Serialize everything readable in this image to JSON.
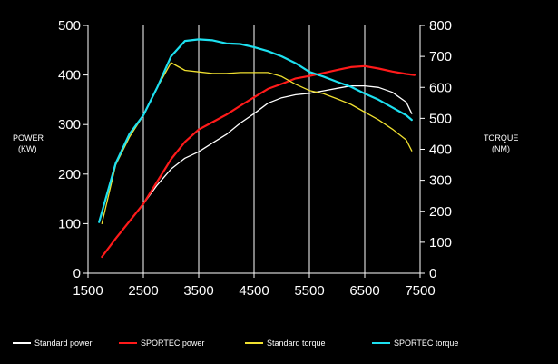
{
  "chart_data": {
    "type": "line",
    "left_axis": {
      "label_line1": "POWER",
      "label_line2": "(KW)",
      "range": [
        0,
        500
      ],
      "ticks": [
        "0",
        "100",
        "200",
        "300",
        "400",
        "500"
      ]
    },
    "right_axis": {
      "label_line1": "TORQUE",
      "label_line2": "(NM)",
      "range": [
        0,
        800
      ],
      "ticks": [
        "0",
        "100",
        "200",
        "300",
        "400",
        "500",
        "600",
        "700",
        "800"
      ]
    },
    "x_axis": {
      "range": [
        1500,
        7500
      ],
      "ticks": [
        "1500",
        "2500",
        "3500",
        "4500",
        "5500",
        "6500",
        "7500"
      ]
    },
    "grid": "vertical",
    "legend_position": "bottom",
    "series": [
      {
        "name": "Standard power",
        "axis": "left",
        "color": "#ffffff",
        "x": [
          1750,
          2000,
          2250,
          2500,
          2750,
          3000,
          3250,
          3500,
          3750,
          4000,
          4250,
          4500,
          4750,
          5000,
          5250,
          5500,
          5750,
          6000,
          6250,
          6500,
          6750,
          7000,
          7250,
          7350
        ],
        "y": [
          33,
          70,
          105,
          140,
          178,
          210,
          232,
          245,
          263,
          280,
          303,
          322,
          343,
          354,
          360,
          363,
          368,
          373,
          378,
          378,
          375,
          365,
          345,
          322
        ]
      },
      {
        "name": "SPORTEC power",
        "axis": "left",
        "color": "#ff1a1a",
        "x": [
          1750,
          2000,
          2250,
          2500,
          2750,
          3000,
          3250,
          3500,
          3750,
          4000,
          4250,
          4500,
          4750,
          5000,
          5250,
          5500,
          5750,
          6000,
          6250,
          6500,
          6750,
          7000,
          7250,
          7400
        ],
        "y": [
          33,
          70,
          105,
          140,
          185,
          230,
          265,
          290,
          305,
          320,
          338,
          355,
          372,
          382,
          393,
          398,
          404,
          410,
          416,
          418,
          413,
          407,
          402,
          400
        ]
      },
      {
        "name": "Standard torque",
        "axis": "right",
        "color": "#f0e030",
        "x": [
          1750,
          2000,
          2250,
          2500,
          2750,
          3000,
          3250,
          3500,
          3750,
          4000,
          4250,
          4500,
          4750,
          5000,
          5250,
          5500,
          5750,
          6000,
          6250,
          6500,
          6750,
          7000,
          7250,
          7350
        ],
        "y": [
          160,
          350,
          440,
          510,
          600,
          680,
          655,
          650,
          645,
          645,
          648,
          648,
          648,
          635,
          610,
          590,
          580,
          563,
          545,
          520,
          495,
          465,
          430,
          395
        ]
      },
      {
        "name": "SPORTEC torque",
        "axis": "right",
        "color": "#1de0f0",
        "x": [
          1700,
          2000,
          2250,
          2500,
          2750,
          3000,
          3250,
          3500,
          3750,
          4000,
          4250,
          4500,
          4750,
          5000,
          5250,
          5500,
          5750,
          6000,
          6250,
          6500,
          6750,
          7000,
          7250,
          7350
        ],
        "y": [
          165,
          355,
          450,
          510,
          600,
          700,
          750,
          755,
          752,
          742,
          740,
          730,
          717,
          700,
          678,
          650,
          635,
          618,
          602,
          580,
          560,
          535,
          510,
          495
        ]
      }
    ]
  }
}
